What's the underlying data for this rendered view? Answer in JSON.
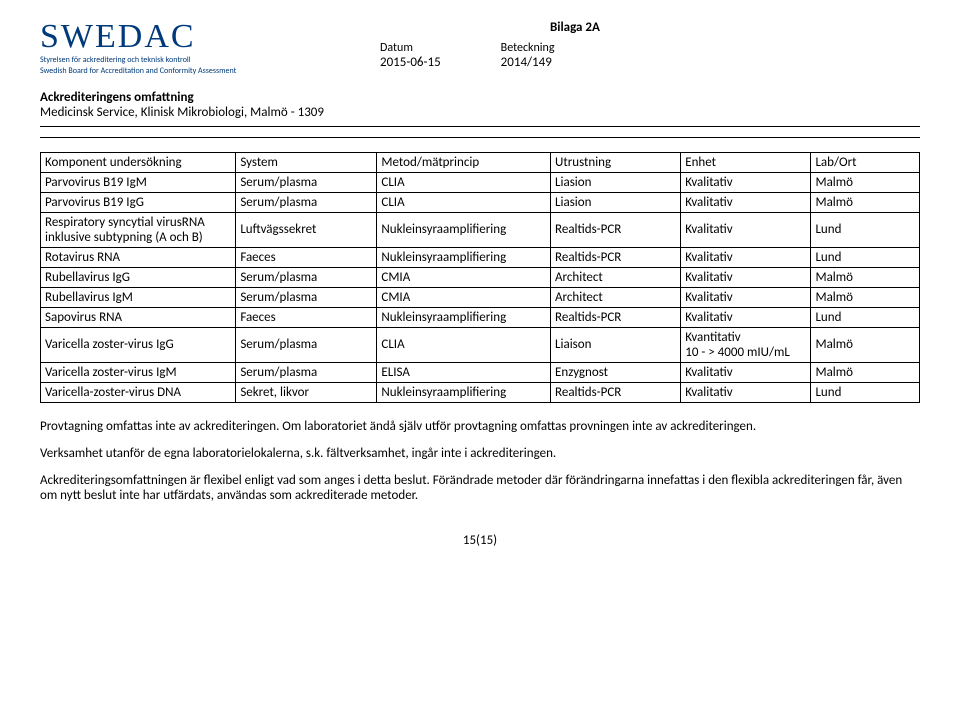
{
  "header": {
    "logo_main": "SWEDAC",
    "logo_line1": "Styrelsen för ackreditering och teknisk kontroll",
    "logo_line2": "Swedish Board for Accreditation and Conformity Assessment",
    "bilaga": "Bilaga 2A",
    "datum_label": "Datum",
    "datum_value": "2015-06-15",
    "beteckning_label": "Beteckning",
    "beteckning_value": "2014/149",
    "accred_title": "Ackrediteringens omfattning",
    "accred_sub": "Medicinsk Service, Klinisk Mikrobiologi, Malmö - 1309"
  },
  "table": {
    "headers": [
      "Komponent undersökning",
      "System",
      "Metod/mätprincip",
      "Utrustning",
      "Enhet",
      "Lab/Ort"
    ],
    "rows": [
      [
        "Parvovirus B19 IgM",
        "Serum/plasma",
        "CLIA",
        "Liasion",
        "Kvalitativ",
        "Malmö"
      ],
      [
        "Parvovirus B19 IgG",
        "Serum/plasma",
        "CLIA",
        "Liasion",
        "Kvalitativ",
        "Malmö"
      ],
      [
        "Respiratory syncytial virusRNA inklusive subtypning (A och B)",
        "Luftvägssekret",
        "Nukleinsyraamplifiering",
        "Realtids-PCR",
        "Kvalitativ",
        "Lund"
      ],
      [
        "Rotavirus RNA",
        "Faeces",
        "Nukleinsyraamplifiering",
        "Realtids-PCR",
        "Kvalitativ",
        "Lund"
      ],
      [
        "Rubellavirus IgG",
        "Serum/plasma",
        "CMIA",
        "Architect",
        "Kvalitativ",
        "Malmö"
      ],
      [
        "Rubellavirus IgM",
        "Serum/plasma",
        "CMIA",
        "Architect",
        "Kvalitativ",
        "Malmö"
      ],
      [
        "Sapovirus  RNA",
        "Faeces",
        "Nukleinsyraamplifiering",
        "Realtids-PCR",
        "Kvalitativ",
        "Lund"
      ],
      [
        "Varicella zoster-virus IgG",
        "Serum/plasma",
        "CLIA",
        "Liaison",
        "Kvantitativ\n10 - > 4000 mIU/mL",
        "Malmö"
      ],
      [
        "Varicella zoster-virus IgM",
        "Serum/plasma",
        "ELISA",
        "Enzygnost",
        "Kvalitativ",
        "Malmö"
      ],
      [
        "Varicella-zoster-virus DNA",
        "Sekret, likvor",
        "Nukleinsyraamplifiering",
        "Realtids-PCR",
        "Kvalitativ",
        "Lund"
      ]
    ]
  },
  "notes": {
    "p1": "Provtagning omfattas inte av ackrediteringen. Om laboratoriet ändå själv utför provtagning omfattas provningen inte av ackrediteringen.",
    "p2": "Verksamhet utanför de egna laboratorielokalerna, s.k. fältverksamhet, ingår inte i ackrediteringen.",
    "p3": "Ackrediteringsomfattningen är flexibel enligt vad som anges i detta beslut. Förändrade metoder där förändringarna innefattas i den flexibla ackrediteringen får, även om nytt beslut inte har utfärdats, användas som ackrediterade metoder."
  },
  "page_number": "15(15)"
}
